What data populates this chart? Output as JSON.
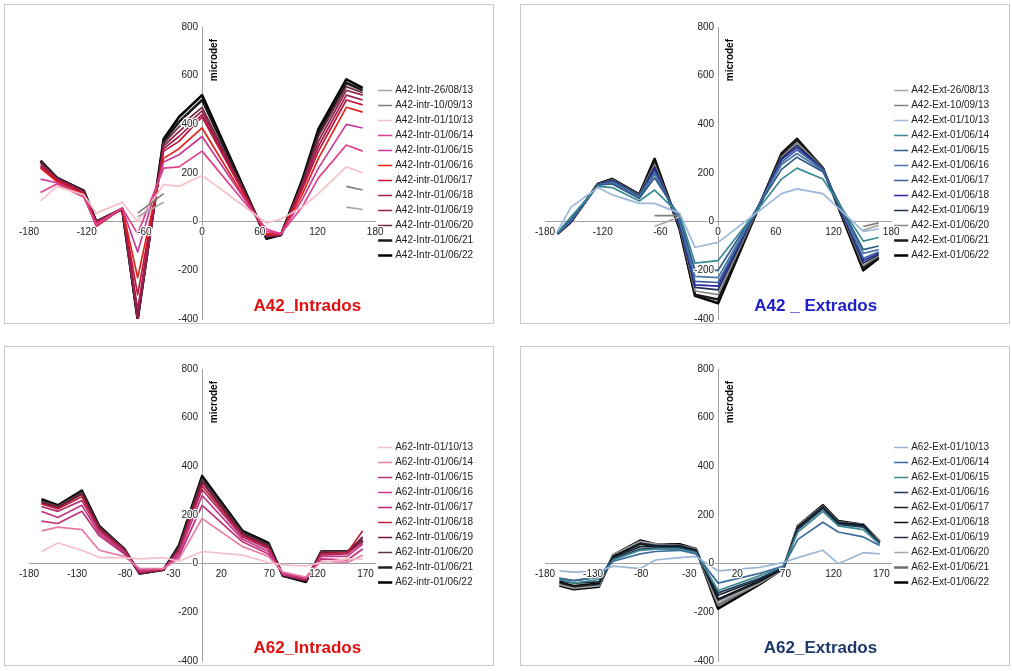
{
  "chart_data": [
    {
      "type": "line",
      "title": "A42_Intrados",
      "ylabel": "microdef",
      "legend": "right",
      "x": [
        -168,
        -151,
        -123,
        -110,
        -83,
        -67,
        -40,
        -24,
        0,
        67,
        82,
        104,
        121,
        150,
        167
      ],
      "xlim": [
        -180,
        180
      ],
      "xticks": [
        -180,
        -120,
        -60,
        0,
        60,
        120,
        180
      ],
      "ylim": [
        -400,
        800
      ],
      "yticks": [
        -400,
        -200,
        0,
        200,
        400,
        600,
        800
      ],
      "series": [
        {
          "name": "A42-Intr-26/08/13",
          "color": "#a6a6a6",
          "values": [
            null,
            null,
            null,
            null,
            null,
            20,
            80,
            null,
            null,
            null,
            null,
            null,
            null,
            60,
            50
          ]
        },
        {
          "name": "A42-intr-10/09/13",
          "color": "#7f7f7f",
          "values": [
            null,
            null,
            null,
            null,
            null,
            35,
            115,
            null,
            null,
            null,
            null,
            null,
            null,
            145,
            130
          ]
        },
        {
          "name": "A42-Intr-01/10/13",
          "color": "#f4c2c6",
          "values": [
            85,
            145,
            110,
            35,
            80,
            0,
            152,
            145,
            190,
            -5,
            10,
            60,
            115,
            225,
            200
          ]
        },
        {
          "name": "A42-Intr-01/06/14",
          "color": "#e0408a",
          "values": [
            120,
            155,
            100,
            -10,
            55,
            -50,
            220,
            225,
            290,
            -30,
            -50,
            60,
            180,
            315,
            290
          ]
        },
        {
          "name": "A42-Intr-01/06/15",
          "color": "#c83c96",
          "values": [
            175,
            160,
            105,
            -15,
            55,
            -125,
            245,
            275,
            350,
            -40,
            -50,
            90,
            220,
            400,
            385
          ]
        },
        {
          "name": "A42-Intr-01/06/16",
          "color": "#e2231a",
          "values": [
            220,
            165,
            110,
            -20,
            55,
            -230,
            260,
            300,
            385,
            -50,
            -50,
            110,
            260,
            470,
            450
          ]
        },
        {
          "name": "A42-intr-01/06/17",
          "color": "#c0143c",
          "values": [
            225,
            170,
            115,
            -10,
            55,
            -300,
            290,
            330,
            430,
            -55,
            -50,
            130,
            290,
            500,
            480
          ]
        },
        {
          "name": "A42-Intr-01/06/18",
          "color": "#a01e50",
          "values": [
            230,
            175,
            120,
            -5,
            55,
            -360,
            300,
            350,
            440,
            -55,
            -50,
            140,
            310,
            520,
            500
          ]
        },
        {
          "name": "A42-Intr-01/06/19",
          "color": "#90204a",
          "values": [
            240,
            175,
            120,
            0,
            55,
            -400,
            310,
            370,
            455,
            -60,
            -55,
            150,
            330,
            540,
            520
          ]
        },
        {
          "name": "A42-Intr-01/06/20",
          "color": "#6b2d3a",
          "values": [
            245,
            178,
            125,
            0,
            52,
            -400,
            320,
            390,
            470,
            -60,
            -55,
            155,
            350,
            555,
            530
          ]
        },
        {
          "name": "A42-Intr-01/06/21",
          "color": "#1a1a1a",
          "values": [
            250,
            180,
            125,
            0,
            52,
            -400,
            330,
            410,
            500,
            -65,
            -55,
            160,
            365,
            570,
            540
          ]
        },
        {
          "name": "A42-Intr-01/06/22",
          "color": "#000000",
          "values": [
            250,
            180,
            127,
            0,
            52,
            -400,
            340,
            430,
            520,
            -70,
            -55,
            170,
            380,
            585,
            550
          ]
        }
      ]
    },
    {
      "type": "line",
      "title": "A42 _ Extrados",
      "ylabel": "microdef",
      "legend": "right",
      "x": [
        -167,
        -153,
        -125,
        -110,
        -82,
        -66,
        -40,
        -24,
        0,
        66,
        82,
        109,
        151,
        167
      ],
      "xlim": [
        -180,
        180
      ],
      "xticks": [
        {
          "value": -180,
          "label": "-180"
        },
        -120,
        -60,
        0,
        60,
        120,
        180
      ],
      "ylim": [
        -400,
        800
      ],
      "yticks": [
        -400,
        -200,
        0,
        200,
        400,
        600,
        800
      ],
      "series": [
        {
          "name": "A42-Ext-26/08/13",
          "color": "#a6a6a6",
          "values": [
            null,
            null,
            null,
            null,
            null,
            -20,
            20,
            null,
            null,
            null,
            null,
            null,
            -35,
            -15
          ]
        },
        {
          "name": "A42-Ext-10/09/13",
          "color": "#7f7f7f",
          "values": [
            null,
            null,
            null,
            null,
            null,
            25,
            25,
            null,
            null,
            null,
            null,
            null,
            -20,
            -5
          ]
        },
        {
          "name": "A42-Ext-01/10/13",
          "color": "#9db8d8",
          "values": [
            -40,
            60,
            140,
            110,
            75,
            75,
            35,
            -105,
            -85,
            115,
            135,
            115,
            -40,
            -30
          ]
        },
        {
          "name": "A42-Ext-01/06/14",
          "color": "#3a8a95",
          "values": [
            -45,
            20,
            145,
            140,
            85,
            130,
            30,
            -170,
            -160,
            175,
            220,
            175,
            -80,
            -65
          ]
        },
        {
          "name": "A42-Ext-01/06/15",
          "color": "#2f5c87",
          "values": [
            -45,
            10,
            150,
            155,
            95,
            180,
            20,
            -200,
            -200,
            215,
            265,
            205,
            -115,
            -100
          ]
        },
        {
          "name": "A42-Ext-01/06/16",
          "color": "#4a79a8",
          "values": [
            -48,
            5,
            150,
            160,
            100,
            195,
            10,
            -225,
            -230,
            235,
            280,
            210,
            -130,
            -115
          ]
        },
        {
          "name": "A42-Ext-01/06/17",
          "color": "#3a5f9a",
          "values": [
            -50,
            5,
            150,
            165,
            105,
            205,
            0,
            -245,
            -250,
            245,
            295,
            215,
            -150,
            -125
          ]
        },
        {
          "name": "A42-Ext-01/06/18",
          "color": "#2a2aa0",
          "values": [
            -50,
            0,
            152,
            168,
            105,
            215,
            -10,
            -260,
            -265,
            255,
            305,
            215,
            -160,
            -130
          ]
        },
        {
          "name": "A42-Ext-01/06/19",
          "color": "#203050",
          "values": [
            -50,
            0,
            153,
            170,
            108,
            225,
            -15,
            -270,
            -280,
            260,
            315,
            218,
            -170,
            -135
          ]
        },
        {
          "name": "A42-Ext-01/06/20",
          "color": "#888888",
          "values": [
            -50,
            0,
            155,
            172,
            110,
            235,
            -20,
            -285,
            -300,
            265,
            325,
            220,
            -180,
            -140
          ]
        },
        {
          "name": "A42-Ext-01/06/21",
          "color": "#1a1a1a",
          "values": [
            -50,
            0,
            155,
            175,
            110,
            245,
            -25,
            -300,
            -320,
            275,
            335,
            220,
            -190,
            -145
          ]
        },
        {
          "name": "A42-Ext-01/06/22",
          "color": "#000000",
          "values": [
            -50,
            0,
            155,
            175,
            112,
            258,
            -30,
            -305,
            -335,
            280,
            340,
            220,
            -200,
            -150
          ]
        }
      ]
    },
    {
      "type": "line",
      "title": "A62_Intrados",
      "ylabel": "microdef",
      "legend": "right",
      "x": [
        -167,
        -150,
        -125,
        -107,
        -81,
        -65,
        -40,
        -24,
        0,
        42,
        69,
        84,
        108,
        124,
        151,
        167
      ],
      "xlim": [
        -180,
        180
      ],
      "xticks": [
        -180,
        -130,
        -80,
        -30,
        20,
        70,
        120,
        170
      ],
      "ylim": [
        -400,
        800
      ],
      "yticks": [
        -400,
        -200,
        0,
        200,
        400,
        600,
        800
      ],
      "series": [
        {
          "name": "A62-Intr-01/10/13",
          "color": "#f4c0c8",
          "values": [
            50,
            85,
            55,
            25,
            25,
            20,
            25,
            10,
            50,
            35,
            5,
            -5,
            -10,
            5,
            20,
            20
          ]
        },
        {
          "name": "A62-Intr-01/06/14",
          "color": "#e77aa5",
          "values": [
            135,
            150,
            140,
            55,
            30,
            -20,
            -20,
            20,
            185,
            70,
            30,
            -35,
            -55,
            10,
            5,
            35
          ]
        },
        {
          "name": "A62-Intr-01/06/15",
          "color": "#c0307a",
          "values": [
            175,
            165,
            215,
            115,
            40,
            -25,
            -20,
            30,
            240,
            90,
            40,
            -40,
            -60,
            20,
            15,
            60
          ]
        },
        {
          "name": "A62-Intr-01/06/16",
          "color": "#c43a84",
          "values": [
            215,
            190,
            240,
            125,
            45,
            -30,
            -20,
            40,
            280,
            100,
            50,
            -45,
            -60,
            30,
            30,
            80
          ]
        },
        {
          "name": "A62-Intr-01/06/17",
          "color": "#b52a6a",
          "values": [
            235,
            215,
            260,
            135,
            50,
            -35,
            -20,
            50,
            305,
            110,
            60,
            -45,
            -65,
            35,
            40,
            90
          ]
        },
        {
          "name": "A62-Intr-01/06/18",
          "color": "#b82232",
          "values": [
            245,
            225,
            275,
            140,
            55,
            -35,
            -25,
            55,
            320,
            115,
            65,
            -45,
            -65,
            40,
            45,
            135
          ]
        },
        {
          "name": "A62-Intr-01/06/19",
          "color": "#7a1040",
          "values": [
            250,
            230,
            285,
            145,
            55,
            -40,
            -25,
            60,
            335,
            120,
            70,
            -45,
            -70,
            45,
            45,
            110
          ]
        },
        {
          "name": "A62-Intr-01/06/20",
          "color": "#5a3a40",
          "values": [
            255,
            235,
            290,
            150,
            60,
            -40,
            -25,
            65,
            345,
            125,
            75,
            -45,
            -70,
            50,
            50,
            100
          ]
        },
        {
          "name": "A62-Intr-01/06/21",
          "color": "#202020",
          "values": [
            260,
            235,
            295,
            150,
            60,
            -40,
            -25,
            70,
            350,
            130,
            80,
            -50,
            -70,
            50,
            50,
            95
          ]
        },
        {
          "name": "A62-intr-01/06/22",
          "color": "#000000",
          "values": [
            265,
            240,
            300,
            155,
            60,
            -40,
            -25,
            75,
            360,
            135,
            85,
            -50,
            -75,
            50,
            50,
            90
          ]
        }
      ]
    },
    {
      "type": "line",
      "title": "A62_Extrados",
      "ylabel": "microdef",
      "legend": "right",
      "x": [
        -165,
        -150,
        -124,
        -109,
        -81,
        -65,
        -40,
        -23,
        0,
        43,
        68,
        83,
        109,
        125,
        151,
        168
      ],
      "xlim": [
        -180,
        180
      ],
      "xticks": [
        -180,
        -130,
        -80,
        -30,
        20,
        70,
        120,
        170
      ],
      "ylim": [
        -400,
        800
      ],
      "yticks": [
        -400,
        -200,
        0,
        200,
        400,
        600,
        800
      ],
      "series": [
        {
          "name": "A62-Ext-01/10/13",
          "color": "#9ab6d6",
          "values": [
            -30,
            -35,
            -30,
            -10,
            -20,
            15,
            25,
            30,
            -30,
            -15,
            5,
            25,
            55,
            0,
            45,
            40
          ]
        },
        {
          "name": "A62-Ext-01/06/14",
          "color": "#3c6d9a",
          "values": [
            -60,
            -70,
            -55,
            10,
            40,
            50,
            55,
            40,
            -80,
            -40,
            -10,
            100,
            170,
            130,
            110,
            75
          ]
        },
        {
          "name": "A62-Ext-01/06/15",
          "color": "#3f8a90",
          "values": [
            -65,
            -80,
            -65,
            15,
            55,
            60,
            60,
            45,
            -110,
            -50,
            -10,
            130,
            215,
            155,
            140,
            80
          ]
        },
        {
          "name": "A62-Ext-01/06/16",
          "color": "#1f3a5a",
          "values": [
            -60,
            -70,
            -55,
            20,
            60,
            65,
            65,
            50,
            -120,
            -60,
            -15,
            140,
            225,
            160,
            150,
            85
          ]
        },
        {
          "name": "A62-Ext-01/06/17",
          "color": "#10202f",
          "values": [
            -70,
            -80,
            -75,
            25,
            70,
            70,
            70,
            50,
            -130,
            -65,
            -15,
            145,
            230,
            165,
            155,
            85
          ]
        },
        {
          "name": "A62-Ext-01/06/18",
          "color": "#101010",
          "values": [
            -75,
            -90,
            -80,
            30,
            80,
            70,
            70,
            55,
            -145,
            -70,
            -20,
            150,
            230,
            165,
            160,
            85
          ]
        },
        {
          "name": "A62-Ext-01/06/19",
          "color": "#203040",
          "values": [
            -80,
            -95,
            -85,
            30,
            85,
            75,
            75,
            55,
            -150,
            -75,
            -20,
            150,
            235,
            170,
            160,
            85
          ]
        },
        {
          "name": "A62-Ext-01/06/20",
          "color": "#a8a8a8",
          "values": [
            -85,
            -100,
            -90,
            35,
            90,
            80,
            75,
            55,
            -160,
            -80,
            -20,
            150,
            235,
            170,
            160,
            90
          ]
        },
        {
          "name": "A62-Ext-01/06/21",
          "color": "#707070",
          "values": [
            -85,
            -100,
            -90,
            35,
            90,
            80,
            75,
            60,
            -170,
            -80,
            -20,
            155,
            235,
            170,
            160,
            90
          ]
        },
        {
          "name": "A62-Ext-01/06/22",
          "color": "#000000",
          "values": [
            -90,
            -105,
            -95,
            35,
            95,
            80,
            80,
            60,
            -185,
            -85,
            -20,
            155,
            240,
            175,
            160,
            90
          ]
        }
      ]
    }
  ]
}
